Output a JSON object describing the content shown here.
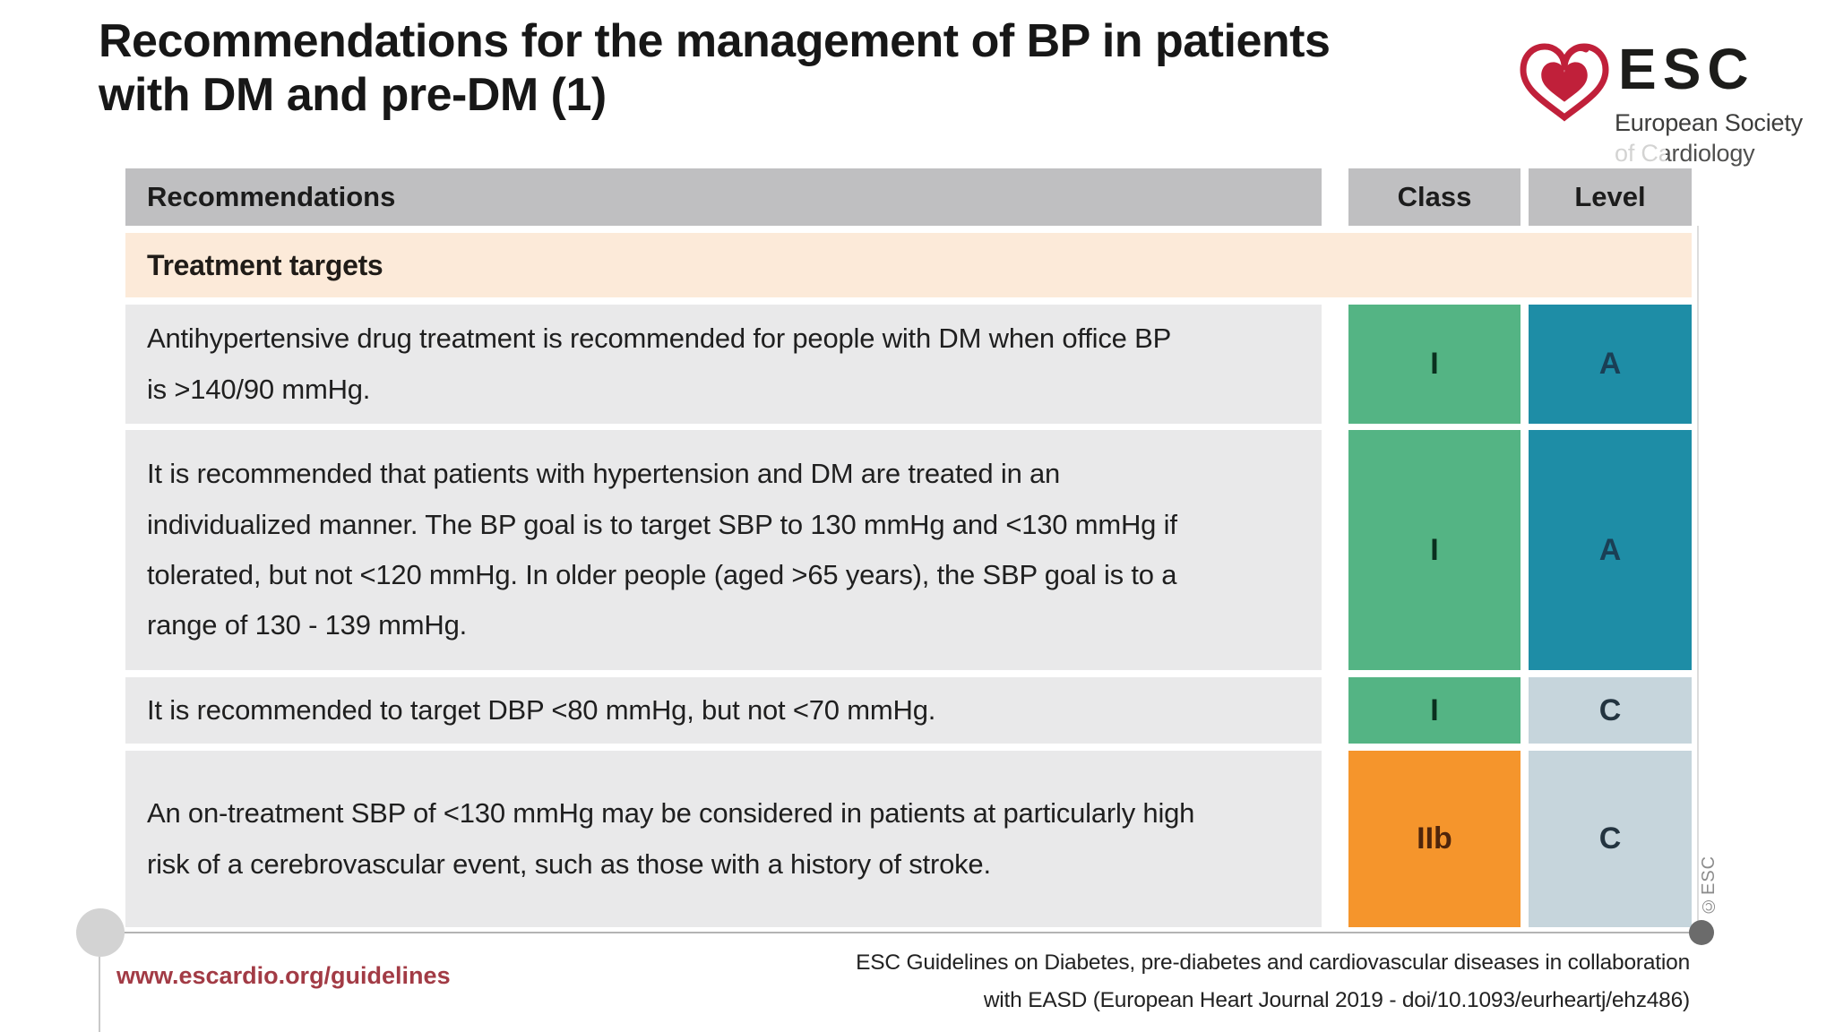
{
  "title": {
    "line1": "Recommendations for the management of BP in patients",
    "line2": "with DM and pre-DM (1)"
  },
  "logo": {
    "brand": "ESC",
    "subtitle_line1": "European Society",
    "subtitle_line2": "of Cardiology",
    "heart_color": "#c0203a"
  },
  "copyright_vertical": "©ESC",
  "table": {
    "headers": {
      "recommendations": "Recommendations",
      "class": "Class",
      "level": "Level"
    },
    "section_header": "Treatment targets",
    "rows": [
      {
        "text": "Antihypertensive drug treatment is recommended for people with DM when office BP is >140/90 mmHg.",
        "class": "I",
        "level": "A"
      },
      {
        "text": "It is recommended that patients with hypertension and DM are treated in an individualized manner. The BP goal is to target SBP to 130 mmHg and <130 mmHg if tolerated, but not <120 mmHg. In older people (aged >65 years), the SBP goal is to a range of 130 - 139 mmHg.",
        "class": "I",
        "level": "A"
      },
      {
        "text": "It is recommended to target DBP <80 mmHg, but not <70 mmHg.",
        "class": "I",
        "level": "C"
      },
      {
        "text": "An on-treatment SBP of <130 mmHg may be considered in patients at particularly high risk of a cerebrovascular event, such as those with a history of stroke.",
        "class": "IIb",
        "level": "C"
      }
    ],
    "palette": {
      "class_cells": {
        "I": {
          "bg": "#54b484",
          "fg": "#0a301f"
        },
        "IIb": {
          "bg": "#f5952c",
          "fg": "#4f250b"
        }
      },
      "level_cells": {
        "A": {
          "bg": "#1e8da6",
          "fg": "#1a3f55"
        },
        "C": {
          "bg": "#c6d5dc",
          "fg": "#233440"
        }
      },
      "header_bg": "#bfbfc1",
      "row_bg": "#e9e9ea",
      "section_bg": "#fcead9"
    }
  },
  "footer": {
    "url": "www.escardio.org/guidelines",
    "url_color": "#a23b45",
    "reference_line1": "ESC Guidelines on Diabetes, pre-diabetes and cardiovascular diseases in collaboration",
    "reference_line2": "with EASD (European Heart Journal 2019 - doi/10.1093/eurheartj/ehz486)"
  }
}
